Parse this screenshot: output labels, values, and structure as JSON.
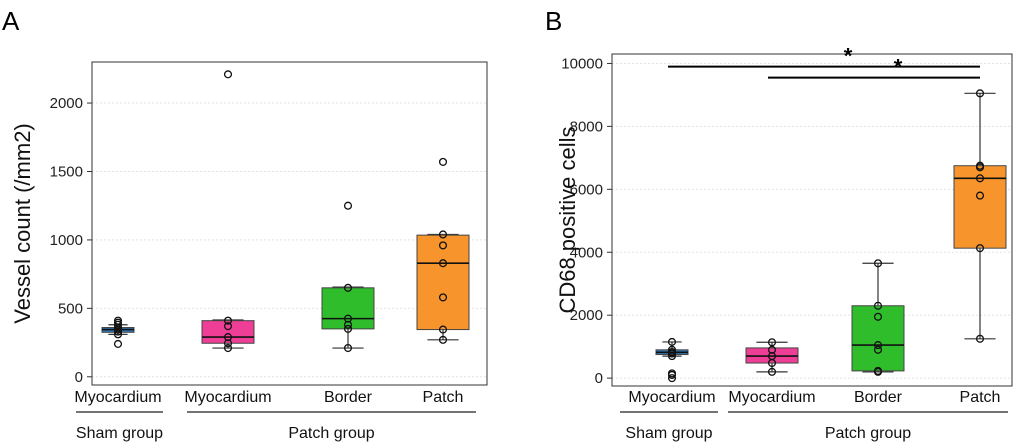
{
  "chart_data": [
    {
      "type": "box",
      "panel_label": "A",
      "ylabel": "Vessel count (/mm2)",
      "ylim": [
        -60,
        2300
      ],
      "yticks": [
        0,
        500,
        1000,
        1500,
        2000
      ],
      "ytick_labels": [
        "0",
        "500",
        "1000",
        "1500",
        "2000"
      ],
      "grid": true,
      "categories": [
        "Myocardium",
        "Myocardium",
        "Border",
        "Patch"
      ],
      "groups": [
        {
          "name": "Sham group",
          "span": [
            0,
            0
          ]
        },
        {
          "name": "Patch group",
          "span": [
            1,
            3
          ]
        }
      ],
      "boxes": [
        {
          "label": "Myocardium",
          "group": "Sham group",
          "color": "#2f78b7",
          "q1": 325,
          "median": 345,
          "q3": 360,
          "whisker_low": 310,
          "whisker_high": 380,
          "points": [
            240,
            310,
            330,
            345,
            360,
            380,
            395,
            410
          ]
        },
        {
          "label": "Myocardium",
          "group": "Patch group",
          "color": "#ef3e96",
          "q1": 245,
          "median": 290,
          "q3": 410,
          "whisker_low": 210,
          "whisker_high": 415,
          "points": [
            210,
            245,
            290,
            370,
            410,
            2210
          ]
        },
        {
          "label": "Border",
          "group": "Patch group",
          "color": "#2fbd2c",
          "q1": 350,
          "median": 425,
          "q3": 650,
          "whisker_low": 210,
          "whisker_high": 655,
          "points": [
            210,
            350,
            380,
            425,
            650,
            1250
          ]
        },
        {
          "label": "Patch",
          "group": "Patch group",
          "color": "#f7952c",
          "q1": 345,
          "median": 830,
          "q3": 1035,
          "whisker_low": 270,
          "whisker_high": 1040,
          "points": [
            270,
            345,
            580,
            830,
            960,
            1040,
            1570
          ]
        }
      ],
      "annotations": []
    },
    {
      "type": "box",
      "panel_label": "B",
      "ylabel": "CD68 positive cells",
      "ylim": [
        -250,
        10300
      ],
      "yticks": [
        0,
        2000,
        4000,
        6000,
        8000,
        10000
      ],
      "ytick_labels": [
        "0",
        "2000",
        "4000",
        "6000",
        "8000",
        "10000"
      ],
      "grid": true,
      "categories": [
        "Myocardium",
        "Myocardium",
        "Border",
        "Patch"
      ],
      "groups": [
        {
          "name": "Sham group",
          "span": [
            0,
            0
          ]
        },
        {
          "name": "Patch group",
          "span": [
            1,
            3
          ]
        }
      ],
      "boxes": [
        {
          "label": "Myocardium",
          "group": "Sham group",
          "color": "#2f78b7",
          "q1": 750,
          "median": 820,
          "q3": 900,
          "whisker_low": 700,
          "whisker_high": 1150,
          "points": [
            0,
            100,
            150,
            700,
            780,
            830,
            900,
            1150
          ]
        },
        {
          "label": "Myocardium",
          "group": "Patch group",
          "color": "#ef3e96",
          "q1": 480,
          "median": 700,
          "q3": 960,
          "whisker_low": 200,
          "whisker_high": 1140,
          "points": [
            200,
            480,
            700,
            900,
            1140
          ]
        },
        {
          "label": "Border",
          "group": "Patch group",
          "color": "#2fbd2c",
          "q1": 230,
          "median": 1050,
          "q3": 2300,
          "whisker_low": 200,
          "whisker_high": 3650,
          "points": [
            200,
            230,
            900,
            1050,
            1950,
            2300,
            3650
          ]
        },
        {
          "label": "Patch",
          "group": "Patch group",
          "color": "#f7952c",
          "q1": 4130,
          "median": 6350,
          "q3": 6750,
          "whisker_low": 1250,
          "whisker_high": 9050,
          "points": [
            1250,
            4130,
            5800,
            6350,
            6700,
            6750,
            9050
          ]
        }
      ],
      "annotations": [
        {
          "text": "*",
          "from": 0,
          "to": 3,
          "y": 9900
        },
        {
          "text": "*",
          "from": 1,
          "to": 3,
          "y": 9550
        }
      ]
    }
  ]
}
